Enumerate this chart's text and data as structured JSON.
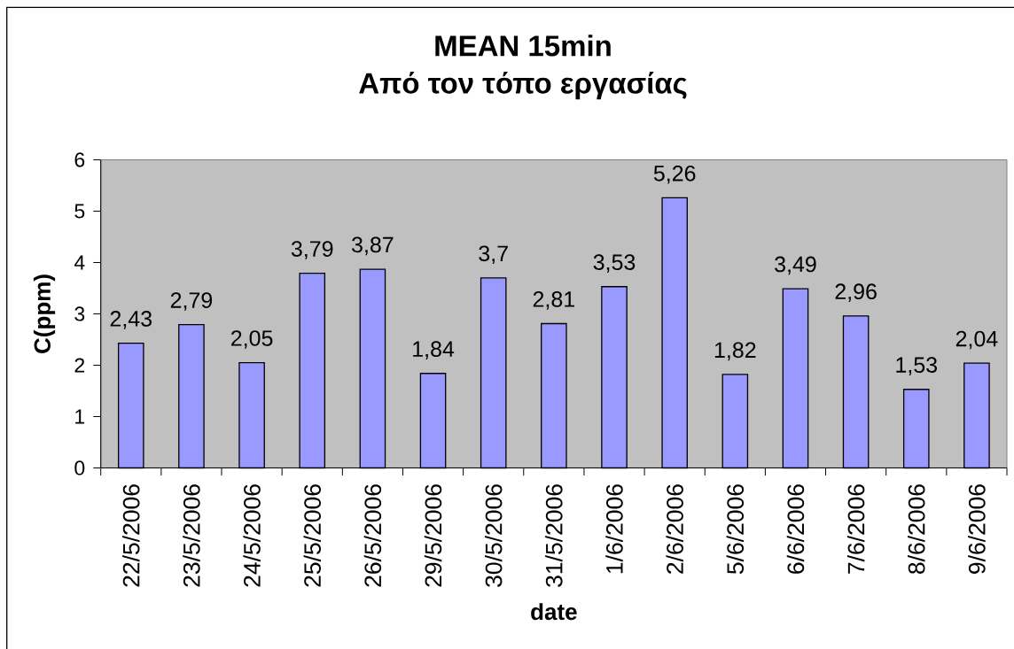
{
  "chart_data": {
    "type": "bar",
    "title": "MEAN 15min",
    "subtitle": "Από τον τόπο εργασίας",
    "xlabel": "date",
    "ylabel": "C(ppm)",
    "categories": [
      "22/5/2006",
      "23/5/2006",
      "24/5/2006",
      "25/5/2006",
      "26/5/2006",
      "29/5/2006",
      "30/5/2006",
      "31/5/2006",
      "1/6/2006",
      "2/6/2006",
      "5/6/2006",
      "6/6/2006",
      "7/6/2006",
      "8/6/2006",
      "9/6/2006"
    ],
    "values": [
      2.43,
      2.79,
      2.05,
      3.79,
      3.87,
      1.84,
      3.7,
      2.81,
      3.53,
      5.26,
      1.82,
      3.49,
      2.96,
      1.53,
      2.04
    ],
    "value_labels": [
      "2,43",
      "2,79",
      "2,05",
      "3,79",
      "3,87",
      "1,84",
      "3,7",
      "2,81",
      "3,53",
      "5,26",
      "1,82",
      "3,49",
      "2,96",
      "1,53",
      "2,04"
    ],
    "color": "#9999ff",
    "ylim": [
      0,
      6
    ],
    "yticks": [
      0,
      1,
      2,
      3,
      4,
      5,
      6
    ]
  }
}
